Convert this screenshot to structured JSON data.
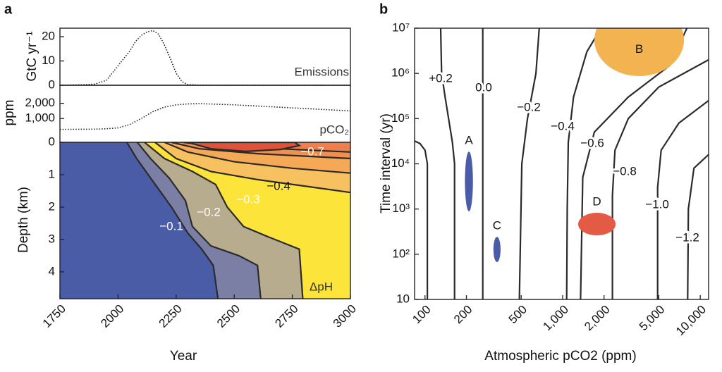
{
  "chart_data": [
    {
      "type": "line",
      "panel_label": "a",
      "ylabel": "GtC yr⁻¹",
      "annotation": "Emissions",
      "x": [
        1750,
        1850,
        1900,
        1950,
        2000,
        2025,
        2050,
        2075,
        2100,
        2125,
        2150,
        2175,
        2200,
        2225,
        2250,
        2275,
        2300,
        2350,
        3000
      ],
      "values": [
        0,
        0.2,
        0.5,
        2,
        8,
        11,
        14,
        18,
        20.5,
        22,
        22.5,
        21,
        16.5,
        11,
        5,
        1.5,
        0.3,
        0,
        0
      ],
      "xlim": [
        1750,
        3000
      ],
      "ylim": [
        0,
        23.5
      ],
      "yticks": [
        0,
        10,
        20
      ],
      "color": "#222222",
      "line_style": "dotted"
    },
    {
      "type": "line",
      "ylabel": "ppm",
      "annotation": "pCO₂",
      "x": [
        1750,
        1900,
        1950,
        2000,
        2050,
        2100,
        2150,
        2200,
        2250,
        2300,
        2350,
        2500,
        2750,
        3000
      ],
      "values": [
        280,
        300,
        320,
        380,
        600,
        1000,
        1450,
        1750,
        1900,
        1960,
        1980,
        1900,
        1700,
        1500
      ],
      "xlim": [
        1750,
        3000
      ],
      "ylim": [
        -570,
        3190
      ],
      "yticks": [
        {
          "value": 1000,
          "label": "1,000"
        },
        {
          "value": 2000,
          "label": "2,000"
        }
      ],
      "color": "#222222",
      "line_style": "dotted"
    },
    {
      "type": "contour",
      "xlabel": "Year",
      "ylabel": "Depth (km)",
      "annotation": "ΔpH",
      "xlim": [
        1750,
        3000
      ],
      "ylim": [
        4.83,
        0
      ],
      "xticks": [
        1750,
        2000,
        2250,
        2500,
        2750,
        3000
      ],
      "yticks": [
        0,
        1,
        2,
        3,
        4
      ],
      "base_color": "#4a5ca6",
      "line_color": "#2b2b2b",
      "contours": [
        {
          "label": "−0.1",
          "label_color": "#ffffff",
          "color": "#7c7fa5",
          "x": [
            2038,
            2080,
            2150,
            2230,
            2300,
            2360,
            2410,
            2430
          ],
          "y": [
            0,
            0.5,
            1.2,
            2,
            2.8,
            3.3,
            3.8,
            4.83
          ]
        },
        {
          "label": "−0.2",
          "label_color": "#ffffff",
          "color": "#b8ac8e",
          "x": [
            2083,
            2140,
            2220,
            2290,
            2320,
            2400,
            2520,
            2600,
            2614
          ],
          "y": [
            0,
            0.5,
            1.1,
            1.8,
            2.6,
            3.2,
            3.5,
            3.8,
            4.83
          ]
        },
        {
          "label": "−0.3",
          "label_color": "#ffffff",
          "color": "#fde43a",
          "x": [
            2114,
            2200,
            2320,
            2420,
            2470,
            2540,
            2640,
            2780,
            2795
          ],
          "y": [
            0,
            0.5,
            0.9,
            1.3,
            2,
            2.6,
            2.9,
            3.3,
            4.83
          ]
        },
        {
          "label": "−0.4",
          "label_color": "#111111",
          "color": "#f8c160",
          "x": [
            2159,
            2250,
            2400,
            2600,
            2800,
            3000
          ],
          "y": [
            0,
            0.5,
            0.9,
            1.15,
            1.35,
            1.55
          ]
        },
        {
          "color": "#f5a956",
          "x": [
            2200,
            2300,
            2500,
            2750,
            3000
          ],
          "y": [
            0,
            0.3,
            0.6,
            0.8,
            0.95
          ]
        },
        {
          "label": "−0.7",
          "label_color": "#ffffff",
          "color": "#f0904f",
          "x": [
            2230,
            2350,
            2600,
            3000
          ],
          "y": [
            0,
            0.2,
            0.35,
            0.5
          ]
        },
        {
          "color": "#ec7f4b",
          "x": [
            2280,
            2400,
            2700,
            3000
          ],
          "y": [
            0,
            0.1,
            0.2,
            0.3
          ]
        },
        {
          "color": "#e0533a",
          "closed": true,
          "x": [
            2300,
            2400,
            2550,
            2700,
            2780,
            2760
          ],
          "y": [
            0,
            0.2,
            0.28,
            0.22,
            0.1,
            0
          ]
        }
      ]
    },
    {
      "type": "contour",
      "panel_label": "b",
      "xlabel": "Atmospheric pCO2 (ppm)",
      "ylabel": "Time interval (yr)",
      "xlog": true,
      "ylog": true,
      "xlim": [
        84,
        11500
      ],
      "ylim": [
        10,
        10000000
      ],
      "xticks": [
        100,
        200,
        500,
        {
          "value": 1000,
          "label": "1,000"
        },
        {
          "value": 2000,
          "label": "2,000"
        },
        {
          "value": 5000,
          "label": "5,000"
        },
        {
          "value": 10000,
          "label": "10,000"
        }
      ],
      "yticks": [
        10,
        {
          "value": 100,
          "label": "10²"
        },
        {
          "value": 1000,
          "label": "10³"
        },
        {
          "value": 10000,
          "label": "10⁴"
        },
        {
          "value": 100000,
          "label": "10⁵"
        },
        {
          "value": 1000000,
          "label": "10⁶"
        },
        {
          "value": 10000000,
          "label": "10⁷"
        }
      ],
      "line_color": "#2b2b2b",
      "contours": [
        {
          "x": [
            104,
            104,
            100,
            92,
            84
          ],
          "y": [
            10,
            10000,
            20000,
            28000,
            32000
          ]
        },
        {
          "label": "+0.2",
          "x": [
            130,
            132,
            140,
            158,
            164,
            164
          ],
          "y": [
            10000000,
            1000000,
            300000,
            30000,
            10000,
            10
          ]
        },
        {
          "label": "0.0",
          "x": [
            263,
            263
          ],
          "y": [
            10000000,
            10
          ]
        },
        {
          "label": "−0.2",
          "x": [
            676,
            640,
            555,
            505,
            485
          ],
          "y": [
            10000000,
            1000000,
            100000,
            10000,
            10
          ]
        },
        {
          "label": "−0.4",
          "x": [
            1900,
            1500,
            1200,
            1100,
            1080,
            1070
          ],
          "y": [
            10000000,
            3000000,
            300000,
            30000,
            1000,
            10
          ]
        },
        {
          "label": "−0.6",
          "x": [
            8000,
            6000,
            3000,
            1700,
            1400,
            1350
          ],
          "y": [
            10000000,
            1500000,
            300000,
            50000,
            5000,
            10
          ]
        },
        {
          "label": "−0.8",
          "x": [
            11500,
            5000,
            3000,
            2400,
            2300,
            2300
          ],
          "y": [
            2000000,
            500000,
            100000,
            20000,
            2000,
            10
          ]
        },
        {
          "label": "−1.0",
          "x": [
            11500,
            7000,
            5200,
            4900,
            4900
          ],
          "y": [
            250000,
            80000,
            20000,
            3000,
            10
          ]
        },
        {
          "label": "−1.2",
          "x": [
            11500,
            9000,
            8200,
            8100
          ],
          "y": [
            16000,
            8000,
            1000,
            10
          ]
        }
      ],
      "regions": [
        {
          "label": "A",
          "color": "#4a5ca8",
          "x": [
            195,
            223
          ],
          "y": [
            890,
            18600
          ]
        },
        {
          "label": "B",
          "color": "#f2b350",
          "x": [
            1702,
            7620
          ],
          "y": [
            870000,
            35000000
          ]
        },
        {
          "label": "C",
          "color": "#4a5ca8",
          "x": [
            314,
            354
          ],
          "y": [
            67,
            243
          ]
        },
        {
          "label": "D",
          "color": "#e35b45",
          "x": [
            1297,
            2427
          ],
          "y": [
            261,
            824
          ]
        }
      ]
    }
  ]
}
